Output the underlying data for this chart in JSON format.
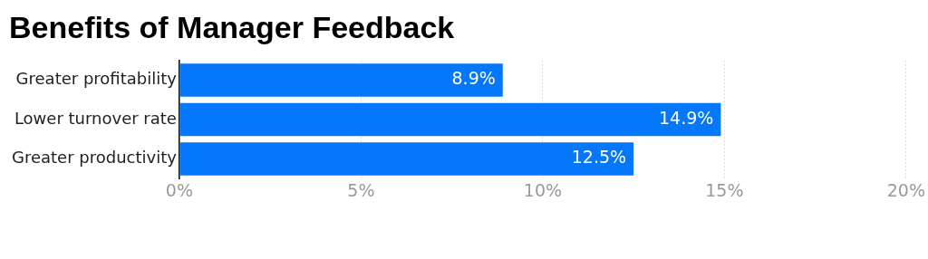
{
  "chart_data": {
    "type": "bar",
    "orientation": "horizontal",
    "title": "Benefits of Manager Feedback",
    "categories": [
      "Greater profitability",
      "Lower turnover rate",
      "Greater productivity"
    ],
    "values": [
      8.9,
      14.9,
      12.5
    ],
    "color": "#0477fb",
    "value_labels": [
      "8.9%",
      "14.9%",
      "12.5%"
    ],
    "xlim": [
      0,
      20
    ],
    "xticks": [
      {
        "value": 0,
        "label": "0%"
      },
      {
        "value": 5,
        "label": "5%"
      },
      {
        "value": 10,
        "label": "10%"
      },
      {
        "value": 15,
        "label": "15%"
      },
      {
        "value": 20,
        "label": "20%"
      }
    ],
    "grid": "x",
    "legend": false
  }
}
